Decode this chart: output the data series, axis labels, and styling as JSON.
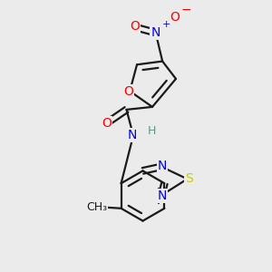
{
  "bg_color": "#ebebeb",
  "bond_color": "#1a1a1a",
  "colors": {
    "O": "#ff0000",
    "N": "#0000ee",
    "S": "#cccc00",
    "C": "#1a1a1a",
    "H": "#5a9a7a"
  },
  "lw": 1.6
}
